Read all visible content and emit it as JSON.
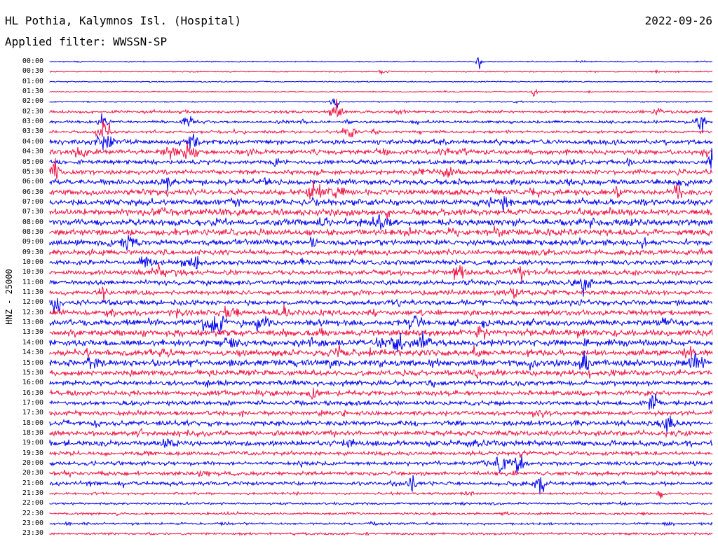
{
  "header": {
    "station": "HL Pothia, Kalymnos Isl. (Hospital)",
    "date": "2022-09-26",
    "filter": "Applied filter: WWSSN-SP"
  },
  "channel_label": "HNZ - 25000",
  "colors": {
    "blue_trace": "#0000ee",
    "red_trace": "#ee1144",
    "text": "#000000",
    "background": "#ffffff"
  },
  "time_labels": [
    "00:00",
    "00:30",
    "01:00",
    "01:30",
    "02:00",
    "02:30",
    "03:00",
    "03:30",
    "04:00",
    "04:30",
    "05:00",
    "05:30",
    "06:00",
    "06:30",
    "07:00",
    "07:30",
    "08:00",
    "08:30",
    "09:00",
    "09:30",
    "10:00",
    "10:30",
    "11:00",
    "11:30",
    "12:00",
    "12:30",
    "13:00",
    "13:30",
    "14:00",
    "14:30",
    "15:00",
    "15:30",
    "16:00",
    "16:30",
    "17:00",
    "17:30",
    "18:00",
    "18:30",
    "19:00",
    "19:30",
    "20:00",
    "20:30",
    "21:00",
    "21:30",
    "22:00",
    "22:30",
    "23:00",
    "23:30"
  ]
}
